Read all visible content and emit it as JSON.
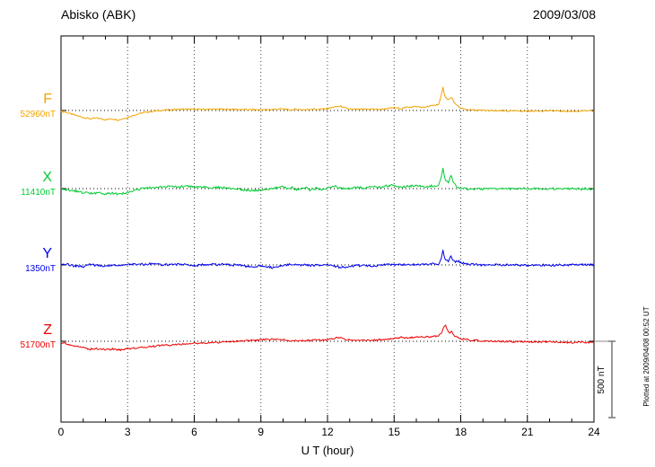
{
  "chart_data": {
    "type": "line",
    "title": "Abisko (ABK)",
    "date": "2009/03/08",
    "xlabel": "U T (hour)",
    "xlim": [
      0,
      24
    ],
    "xticks": [
      0,
      3,
      6,
      9,
      12,
      15,
      18,
      21,
      24
    ],
    "grid": "vertical-dotted",
    "legend_position": "left-margin",
    "scale_bar_label": "500 nT",
    "scale_bar_nT": 500,
    "plotted_at": "Plotted at 2009/04/08 00:52 UT",
    "unit": "nT deviation from baseline",
    "series": [
      {
        "name": "F",
        "baseline_value_label": "52960nT",
        "color": "#f0a500",
        "noise_nT": 6,
        "points": [
          [
            0,
            -5
          ],
          [
            0.3,
            -15
          ],
          [
            0.6,
            -30
          ],
          [
            1,
            -45
          ],
          [
            1.3,
            -55
          ],
          [
            1.6,
            -50
          ],
          [
            2,
            -60
          ],
          [
            2.3,
            -55
          ],
          [
            2.6,
            -62
          ],
          [
            3,
            -45
          ],
          [
            3.3,
            -30
          ],
          [
            3.6,
            -18
          ],
          [
            4,
            -8
          ],
          [
            4.5,
            0
          ],
          [
            5,
            5
          ],
          [
            5.5,
            8
          ],
          [
            6,
            8
          ],
          [
            6.5,
            7
          ],
          [
            7,
            8
          ],
          [
            7.5,
            8
          ],
          [
            8,
            6
          ],
          [
            8.5,
            5
          ],
          [
            9,
            4
          ],
          [
            9.5,
            6
          ],
          [
            10,
            10
          ],
          [
            10.3,
            2
          ],
          [
            10.6,
            8
          ],
          [
            11,
            4
          ],
          [
            11.3,
            10
          ],
          [
            11.6,
            6
          ],
          [
            12,
            12
          ],
          [
            12.3,
            22
          ],
          [
            12.6,
            28
          ],
          [
            12.8,
            15
          ],
          [
            13,
            8
          ],
          [
            13.5,
            6
          ],
          [
            14,
            10
          ],
          [
            14.3,
            6
          ],
          [
            14.6,
            10
          ],
          [
            15,
            18
          ],
          [
            15.3,
            12
          ],
          [
            15.6,
            22
          ],
          [
            16,
            25
          ],
          [
            16.3,
            20
          ],
          [
            16.6,
            28
          ],
          [
            17,
            40
          ],
          [
            17.1,
            80
          ],
          [
            17.2,
            150
          ],
          [
            17.3,
            90
          ],
          [
            17.45,
            70
          ],
          [
            17.6,
            85
          ],
          [
            17.75,
            40
          ],
          [
            18,
            15
          ],
          [
            18.3,
            5
          ],
          [
            18.6,
            2
          ],
          [
            19,
            0
          ],
          [
            19.5,
            -2
          ],
          [
            20,
            -4
          ],
          [
            20.5,
            -3
          ],
          [
            21,
            -5
          ],
          [
            21.5,
            -3
          ],
          [
            22,
            -2
          ],
          [
            22.5,
            -4
          ],
          [
            23,
            -6
          ],
          [
            23.5,
            -3
          ],
          [
            24,
            -4
          ]
        ]
      },
      {
        "name": "X",
        "baseline_value_label": "11410nT",
        "color": "#00cc33",
        "noise_nT": 9,
        "points": [
          [
            0,
            -2
          ],
          [
            0.3,
            -8
          ],
          [
            0.6,
            -15
          ],
          [
            1,
            -25
          ],
          [
            1.3,
            -32
          ],
          [
            1.6,
            -28
          ],
          [
            2,
            -35
          ],
          [
            2.3,
            -30
          ],
          [
            2.6,
            -38
          ],
          [
            3,
            -25
          ],
          [
            3.3,
            -12
          ],
          [
            3.6,
            -2
          ],
          [
            4,
            6
          ],
          [
            4.3,
            12
          ],
          [
            4.6,
            8
          ],
          [
            5,
            14
          ],
          [
            5.3,
            10
          ],
          [
            5.6,
            14
          ],
          [
            6,
            10
          ],
          [
            6.5,
            8
          ],
          [
            7,
            8
          ],
          [
            7.5,
            4
          ],
          [
            8,
            -4
          ],
          [
            8.3,
            -10
          ],
          [
            8.6,
            -14
          ],
          [
            9,
            -10
          ],
          [
            9.3,
            -4
          ],
          [
            9.6,
            2
          ],
          [
            10,
            14
          ],
          [
            10.2,
            -2
          ],
          [
            10.4,
            8
          ],
          [
            10.6,
            -6
          ],
          [
            11,
            8
          ],
          [
            11.2,
            -8
          ],
          [
            11.5,
            4
          ],
          [
            11.8,
            -6
          ],
          [
            12,
            4
          ],
          [
            12.3,
            18
          ],
          [
            12.5,
            6
          ],
          [
            12.8,
            -4
          ],
          [
            13,
            2
          ],
          [
            13.3,
            12
          ],
          [
            13.6,
            4
          ],
          [
            14,
            18
          ],
          [
            14.3,
            8
          ],
          [
            14.6,
            14
          ],
          [
            15,
            22
          ],
          [
            15.3,
            8
          ],
          [
            15.6,
            16
          ],
          [
            16,
            20
          ],
          [
            16.3,
            12
          ],
          [
            16.6,
            16
          ],
          [
            17,
            22
          ],
          [
            17.1,
            60
          ],
          [
            17.2,
            140
          ],
          [
            17.3,
            55
          ],
          [
            17.45,
            40
          ],
          [
            17.55,
            90
          ],
          [
            17.7,
            30
          ],
          [
            17.85,
            10
          ],
          [
            18,
            2
          ],
          [
            18.5,
            -4
          ],
          [
            19,
            -2
          ],
          [
            19.5,
            0
          ],
          [
            20,
            -2
          ],
          [
            21,
            0
          ],
          [
            22,
            -2
          ],
          [
            23,
            0
          ],
          [
            24,
            -2
          ]
        ]
      },
      {
        "name": "Y",
        "baseline_value_label": "1350nT",
        "color": "#0000ee",
        "noise_nT": 9,
        "points": [
          [
            0,
            0
          ],
          [
            0.3,
            4
          ],
          [
            0.6,
            -6
          ],
          [
            1,
            -10
          ],
          [
            1.3,
            6
          ],
          [
            1.6,
            -4
          ],
          [
            2,
            -8
          ],
          [
            2.3,
            2
          ],
          [
            2.6,
            -4
          ],
          [
            3,
            0
          ],
          [
            3.5,
            4
          ],
          [
            4,
            6
          ],
          [
            4.5,
            2
          ],
          [
            5,
            0
          ],
          [
            5.5,
            2
          ],
          [
            6,
            -2
          ],
          [
            6.5,
            0
          ],
          [
            7,
            4
          ],
          [
            7.5,
            2
          ],
          [
            8,
            -2
          ],
          [
            8.3,
            -10
          ],
          [
            8.6,
            -16
          ],
          [
            9,
            -6
          ],
          [
            9.3,
            -14
          ],
          [
            9.6,
            -18
          ],
          [
            10,
            -4
          ],
          [
            10.3,
            4
          ],
          [
            10.6,
            0
          ],
          [
            11,
            2
          ],
          [
            11.3,
            -4
          ],
          [
            11.6,
            -2
          ],
          [
            12,
            0
          ],
          [
            12.3,
            -12
          ],
          [
            12.6,
            -16
          ],
          [
            13,
            -10
          ],
          [
            13.3,
            -4
          ],
          [
            13.6,
            -2
          ],
          [
            14,
            -6
          ],
          [
            14.5,
            -2
          ],
          [
            15,
            4
          ],
          [
            15.3,
            0
          ],
          [
            15.6,
            2
          ],
          [
            16,
            0
          ],
          [
            16.5,
            4
          ],
          [
            17,
            8
          ],
          [
            17.1,
            30
          ],
          [
            17.2,
            95
          ],
          [
            17.3,
            40
          ],
          [
            17.45,
            25
          ],
          [
            17.55,
            60
          ],
          [
            17.7,
            20
          ],
          [
            17.85,
            25
          ],
          [
            18,
            18
          ],
          [
            18.2,
            8
          ],
          [
            18.5,
            4
          ],
          [
            19,
            0
          ],
          [
            19.5,
            2
          ],
          [
            20,
            0
          ],
          [
            21,
            0
          ],
          [
            22,
            -2
          ],
          [
            23,
            0
          ],
          [
            24,
            0
          ]
        ]
      },
      {
        "name": "Z",
        "baseline_value_label": "51700nT",
        "color": "#ee0000",
        "noise_nT": 7,
        "points": [
          [
            0,
            -8
          ],
          [
            0.3,
            -18
          ],
          [
            0.6,
            -30
          ],
          [
            1,
            -42
          ],
          [
            1.3,
            -52
          ],
          [
            1.6,
            -48
          ],
          [
            2,
            -56
          ],
          [
            2.3,
            -50
          ],
          [
            2.6,
            -58
          ],
          [
            3,
            -48
          ],
          [
            3.3,
            -44
          ],
          [
            3.6,
            -40
          ],
          [
            4,
            -34
          ],
          [
            4.5,
            -28
          ],
          [
            5,
            -24
          ],
          [
            5.5,
            -18
          ],
          [
            6,
            -14
          ],
          [
            6.5,
            -12
          ],
          [
            7,
            -8
          ],
          [
            7.5,
            -4
          ],
          [
            8,
            0
          ],
          [
            8.5,
            6
          ],
          [
            9,
            10
          ],
          [
            9.3,
            12
          ],
          [
            9.6,
            12
          ],
          [
            10,
            8
          ],
          [
            10.5,
            4
          ],
          [
            11,
            4
          ],
          [
            11.5,
            8
          ],
          [
            12,
            10
          ],
          [
            12.3,
            20
          ],
          [
            12.6,
            26
          ],
          [
            12.8,
            14
          ],
          [
            13,
            8
          ],
          [
            13.5,
            4
          ],
          [
            14,
            8
          ],
          [
            14.5,
            10
          ],
          [
            15,
            18
          ],
          [
            15.3,
            24
          ],
          [
            15.6,
            22
          ],
          [
            16,
            28
          ],
          [
            16.3,
            26
          ],
          [
            16.6,
            30
          ],
          [
            17,
            38
          ],
          [
            17.15,
            60
          ],
          [
            17.3,
            110
          ],
          [
            17.45,
            55
          ],
          [
            17.6,
            60
          ],
          [
            17.75,
            30
          ],
          [
            18,
            18
          ],
          [
            18.3,
            10
          ],
          [
            18.6,
            6
          ],
          [
            19,
            2
          ],
          [
            19.5,
            0
          ],
          [
            20,
            -2
          ],
          [
            20.5,
            -2
          ],
          [
            21,
            -4
          ],
          [
            21.5,
            -4
          ],
          [
            22,
            -4
          ],
          [
            22.5,
            -6
          ],
          [
            23,
            -8
          ],
          [
            23.5,
            -6
          ],
          [
            24,
            -8
          ]
        ]
      }
    ]
  }
}
